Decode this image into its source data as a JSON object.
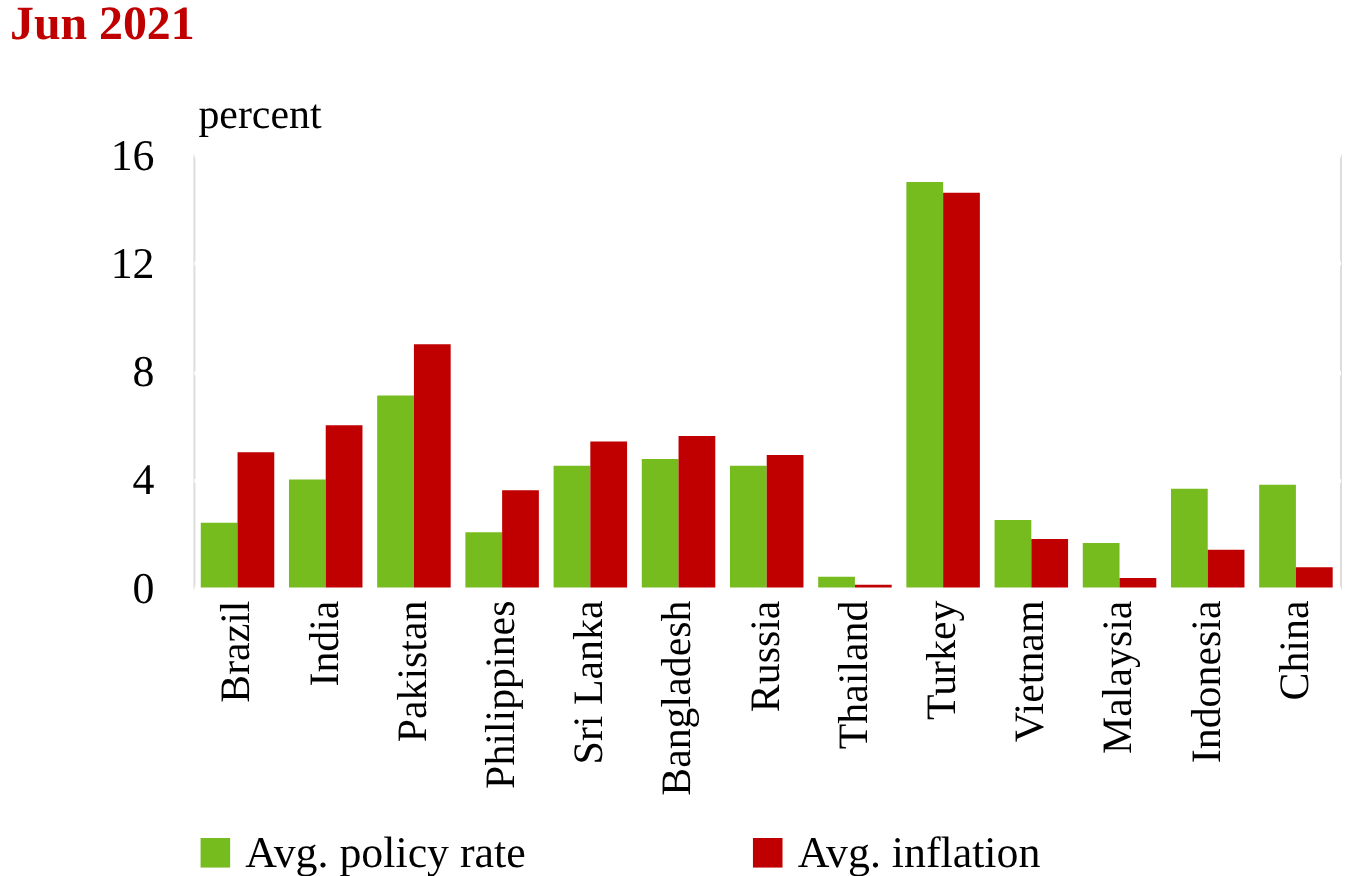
{
  "chart_data": {
    "type": "bar",
    "title": "Jun 2021",
    "ylabel": "percent",
    "categories": [
      "Brazil",
      "India",
      "Pakistan",
      "Philippines",
      "Sri Lanka",
      "Bangladesh",
      "Russia",
      "Thailand",
      "Turkey",
      "Vietnam",
      "Malaysia",
      "Indonesia",
      "China"
    ],
    "series": [
      {
        "name": "Avg. policy rate",
        "color": "#77bc1f",
        "values": [
          2.4,
          4.0,
          7.1,
          2.05,
          4.5,
          4.75,
          4.5,
          0.4,
          15.0,
          2.5,
          1.65,
          3.65,
          3.8
        ]
      },
      {
        "name": "Avg. inflation",
        "color": "#c00000",
        "values": [
          5.0,
          6.0,
          9.0,
          3.6,
          5.4,
          5.6,
          4.9,
          0.1,
          14.6,
          1.8,
          0.35,
          1.4,
          0.75
        ]
      }
    ],
    "ylim": [
      0,
      16
    ],
    "yticks": [
      0,
      4,
      8,
      12,
      16
    ],
    "grid": true,
    "legend": "bottom"
  }
}
